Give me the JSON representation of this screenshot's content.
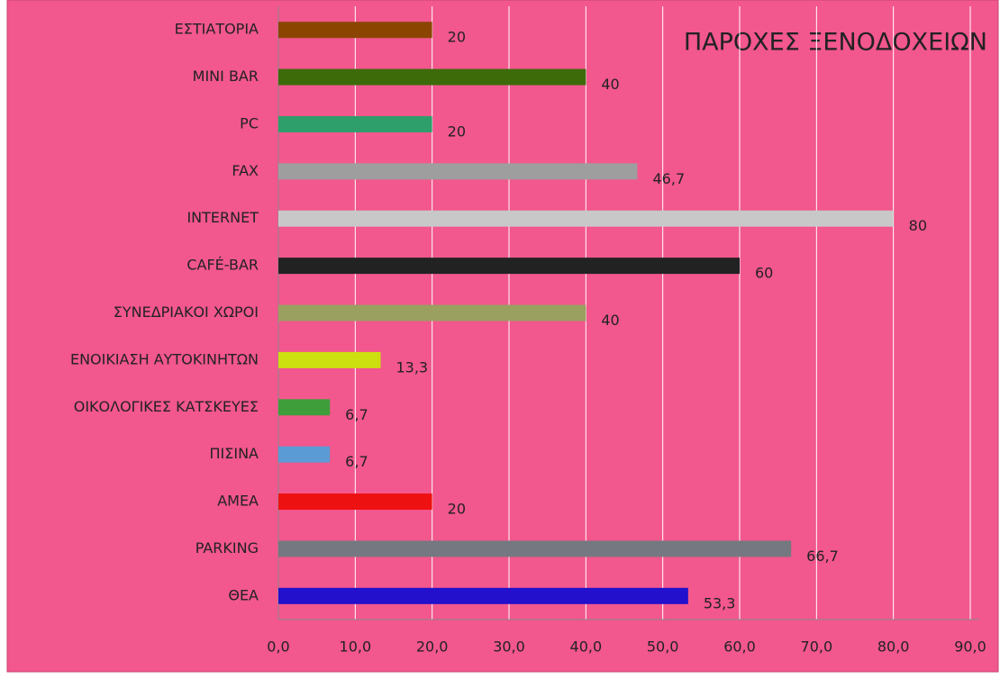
{
  "chart_data": {
    "type": "barh",
    "title": "ΠΑΡΟΧΕΣ ΞΕΝΟΔΟΧΕΙΩΝ",
    "categories": [
      "ΕΣΤΙΑΤΟΡΙΑ",
      "MINI BAR",
      "PC",
      "FAX",
      "INTERNET",
      "CAFÉ-BAR",
      "ΣΥΝΕΔΡΙΑΚΟΙ ΧΩΡΟΙ",
      "ΕΝΟΙΚΙΑΣΗ ΑΥΤΟΚΙΝΗΤΩΝ",
      "ΟΙΚΟΛΟΓΙΚΕΣ ΚΑΤΣΚΕΥΕΣ",
      "ΠΙΣΙΝΑ",
      "ΑΜΕΑ",
      "PARKING",
      "ΘΕΑ"
    ],
    "values": [
      20,
      40,
      20,
      46.7,
      80,
      60,
      40,
      13.3,
      6.7,
      6.7,
      20,
      66.7,
      53.3
    ],
    "value_labels": [
      "20",
      "40",
      "20",
      "46,7",
      "80",
      "60",
      "40",
      "13,3",
      "6,7",
      "6,7",
      "20",
      "66,7",
      "53,3"
    ],
    "colors": [
      "#8b4500",
      "#3d6b0a",
      "#2e9e6b",
      "#9e9e9e",
      "#c8c8c8",
      "#222222",
      "#9aa060",
      "#cce010",
      "#3e9e3a",
      "#5b9bd5",
      "#ee1111",
      "#757880",
      "#2210cc"
    ],
    "xlim": [
      0,
      90
    ],
    "xticks": [
      {
        "value": 0,
        "label": "0,0"
      },
      {
        "value": 10,
        "label": "10,0"
      },
      {
        "value": 20,
        "label": "20,0"
      },
      {
        "value": 30,
        "label": "30,0"
      },
      {
        "value": 40,
        "label": "40,0"
      },
      {
        "value": 50,
        "label": "50,0"
      },
      {
        "value": 60,
        "label": "60,0"
      },
      {
        "value": 70,
        "label": "70,0"
      },
      {
        "value": 80,
        "label": "80,0"
      },
      {
        "value": 90,
        "label": "90,0"
      }
    ],
    "grid": true
  }
}
